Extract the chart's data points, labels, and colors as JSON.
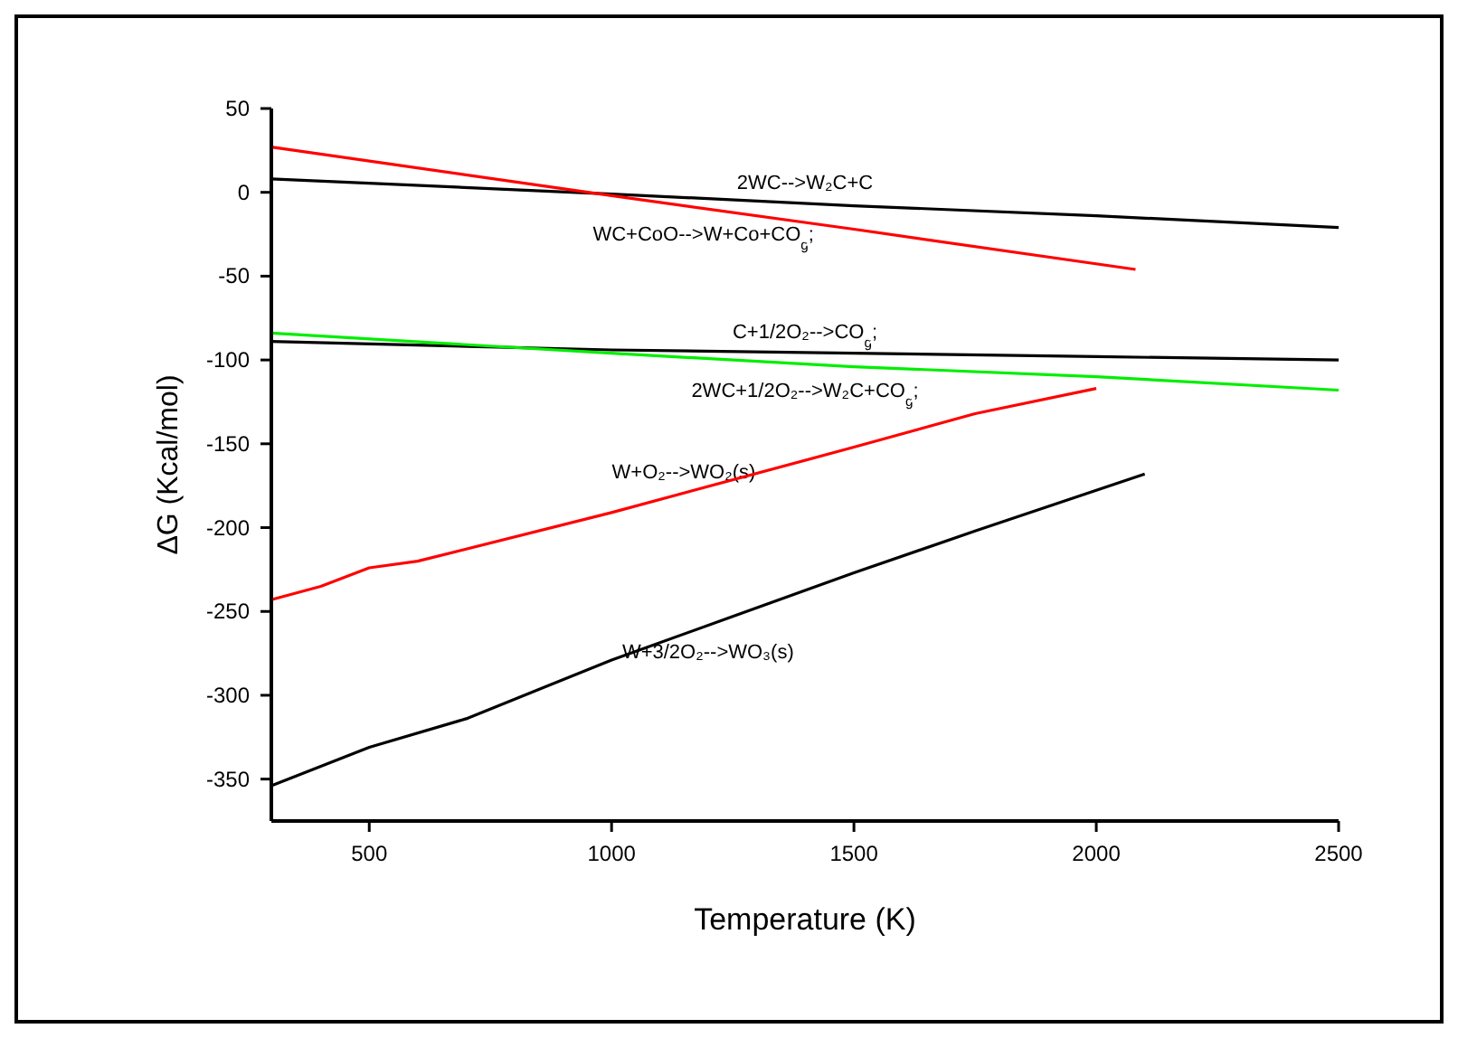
{
  "chart_data": {
    "type": "line",
    "xlabel": "Temperature (K)",
    "ylabel": "ΔG (Kcal/mol)",
    "xlim": [
      298,
      2500
    ],
    "xticks": [
      500,
      1000,
      1500,
      2000,
      2500
    ],
    "ylim": [
      -375,
      50
    ],
    "yticks": [
      50,
      0,
      -50,
      -100,
      -150,
      -200,
      -250,
      -300,
      -350
    ],
    "grid": false,
    "marker": "none",
    "line_style": "solid",
    "series": [
      {
        "name": "2WC-->W₂C+C",
        "color": "#000000",
        "x": [
          298,
          1000,
          1500,
          2000,
          2500
        ],
        "values": [
          8,
          -1,
          -8,
          -14,
          -21
        ]
      },
      {
        "name": "WC+CoO-->W+Co+CO$_{g}$;",
        "color": "#ff0000",
        "x": [
          298,
          1000,
          1500,
          2081
        ],
        "values": [
          27,
          -2,
          -22,
          -46
        ]
      },
      {
        "name": "C+1/2O₂-->CO$_{g}$;",
        "color": "#000000",
        "x": [
          298,
          1000,
          1500,
          2000,
          2500
        ],
        "values": [
          -89,
          -94,
          -96,
          -98,
          -100
        ]
      },
      {
        "name": "2WC+1/2O₂-->W₂C+CO$_{g}$;",
        "color": "#00ee00",
        "x": [
          298,
          1000,
          1500,
          2000,
          2500
        ],
        "values": [
          -84,
          -96,
          -104,
          -110,
          -118
        ]
      },
      {
        "name": "W+O₂-->WO₂(s)",
        "color": "#ff0000",
        "x": [
          298,
          400,
          500,
          600,
          1000,
          1500,
          1750,
          2000
        ],
        "values": [
          -243,
          -235,
          -224,
          -220,
          -191,
          -152,
          -132,
          -117
        ]
      },
      {
        "name": "W+3/2O₂-->WO₃(s)",
        "color": "#000000",
        "x": [
          298,
          500,
          700,
          1000,
          1250,
          1500,
          1750,
          2100
        ],
        "values": [
          -354,
          -331,
          -314,
          -279,
          -253,
          -227,
          -202,
          -168
        ]
      }
    ]
  }
}
